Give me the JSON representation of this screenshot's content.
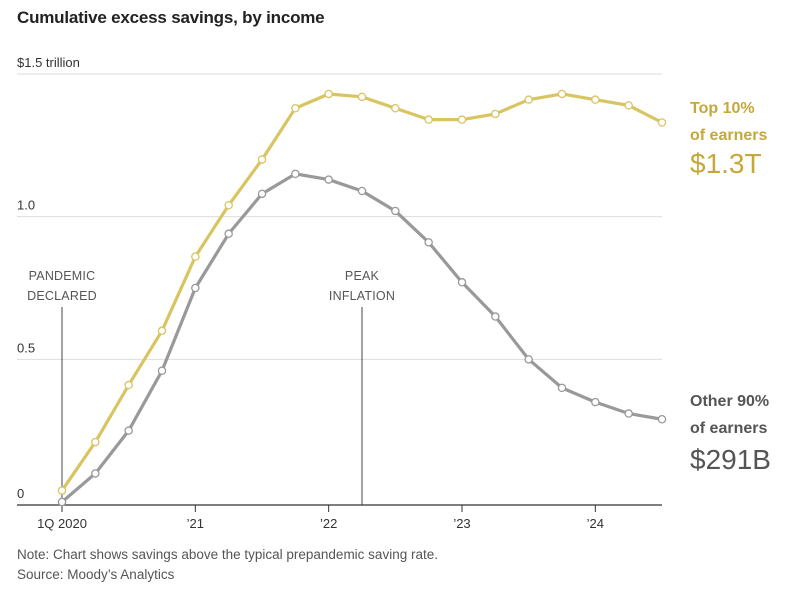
{
  "chart_data": {
    "type": "line",
    "title": "Cumulative excess savings, by income",
    "y_tick_labels": [
      "0",
      "0.5",
      "1.0",
      "$1.5 trillion"
    ],
    "y_ticks": [
      0,
      0.5,
      1.0,
      1.5
    ],
    "ylim": [
      0,
      1.5
    ],
    "x_tick_labels": [
      "1Q 2020",
      "’21",
      "’22",
      "’23",
      "’24"
    ],
    "x_tick_positions": [
      0,
      4,
      8,
      12,
      16
    ],
    "x_count": 19,
    "grid": true,
    "annotations": [
      {
        "lines": [
          "PANDEMIC",
          "DECLARED"
        ],
        "x": 0
      },
      {
        "lines": [
          "PEAK",
          "INFLATION"
        ],
        "x": 9
      }
    ],
    "series": [
      {
        "name": "Top 10% of earners",
        "label_lines": [
          "Top 10%",
          "of earners"
        ],
        "end_value_label": "$1.3T",
        "color": "#d9c462",
        "values": [
          0.04,
          0.21,
          0.41,
          0.6,
          0.86,
          1.04,
          1.2,
          1.38,
          1.43,
          1.42,
          1.38,
          1.34,
          1.34,
          1.36,
          1.41,
          1.43,
          1.41,
          1.39,
          1.33
        ]
      },
      {
        "name": "Other 90% of earners",
        "label_lines": [
          "Other 90%",
          "of earners"
        ],
        "end_value_label": "$291B",
        "color": "#999999",
        "values": [
          0.0,
          0.1,
          0.25,
          0.46,
          0.75,
          0.94,
          1.08,
          1.15,
          1.13,
          1.09,
          1.02,
          0.91,
          0.77,
          0.65,
          0.5,
          0.4,
          0.35,
          0.31,
          0.29
        ]
      }
    ]
  },
  "footer": {
    "note": "Note: Chart shows savings above the typical prepandemic saving rate.",
    "source": "Source: Moody’s Analytics"
  }
}
